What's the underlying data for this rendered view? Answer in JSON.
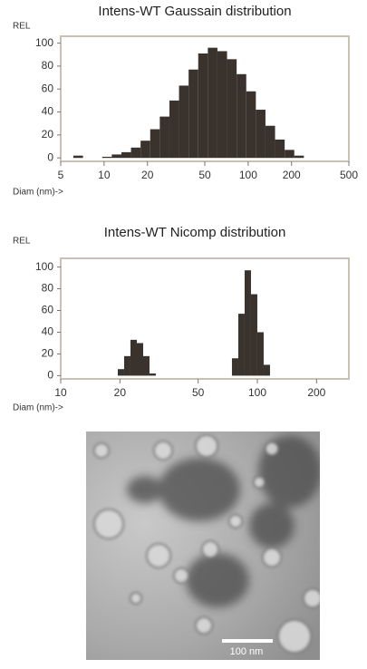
{
  "chart_data": [
    {
      "type": "histogram",
      "title": "Intens-WT Gaussain distribution",
      "ylabel": "REL",
      "xlabel": "Diam (nm)->",
      "xscale": "log",
      "xlim": [
        5,
        500
      ],
      "xticks": [
        5,
        10,
        20,
        50,
        100,
        200,
        500
      ],
      "ylim": [
        -3,
        106
      ],
      "yticks": [
        0,
        20,
        40,
        60,
        80,
        100
      ],
      "color": "#3a332d",
      "bins": [
        6.12,
        7.14,
        8.32,
        9.7,
        11.31,
        13.19,
        15.37,
        17.92,
        20.9,
        24.36,
        28.41,
        33.12,
        38.61,
        45.02,
        52.49,
        61.19,
        71.35,
        83.18,
        96.98,
        113.07,
        131.83,
        153.7,
        179.2,
        208.93,
        243.6
      ],
      "counts": [
        2,
        0,
        0,
        1,
        3,
        5,
        9,
        15,
        25,
        36,
        50,
        63,
        77,
        91,
        96,
        93,
        86,
        73,
        58,
        42,
        28,
        16,
        7,
        2
      ]
    },
    {
      "type": "histogram",
      "title": "Intens-WT Nicomp distribution",
      "ylabel": "REL",
      "xlabel": "Diam (nm)->",
      "xscale": "log",
      "xlim": [
        10,
        292
      ],
      "xticks": [
        10,
        20,
        50,
        100,
        200
      ],
      "ylim": [
        -3,
        108
      ],
      "yticks": [
        0,
        20,
        40,
        60,
        80,
        100
      ],
      "color": "#3a332d",
      "bins": [
        19.51,
        21.01,
        22.63,
        24.38,
        26.26,
        28.28,
        30.46,
        32.81,
        35.34,
        38.06,
        41.0,
        44.16,
        47.56,
        51.23,
        55.18,
        59.43,
        64.01,
        68.95,
        74.26,
        79.99,
        86.15,
        92.8,
        99.95,
        107.66,
        115.96
      ],
      "counts": [
        6,
        18,
        33,
        30,
        18,
        2,
        0,
        0,
        0,
        0,
        0,
        0,
        0,
        0,
        0,
        0,
        0,
        0,
        16,
        57,
        97,
        75,
        40,
        10
      ]
    }
  ],
  "image": {
    "scale_bar_label": "100 nm"
  }
}
